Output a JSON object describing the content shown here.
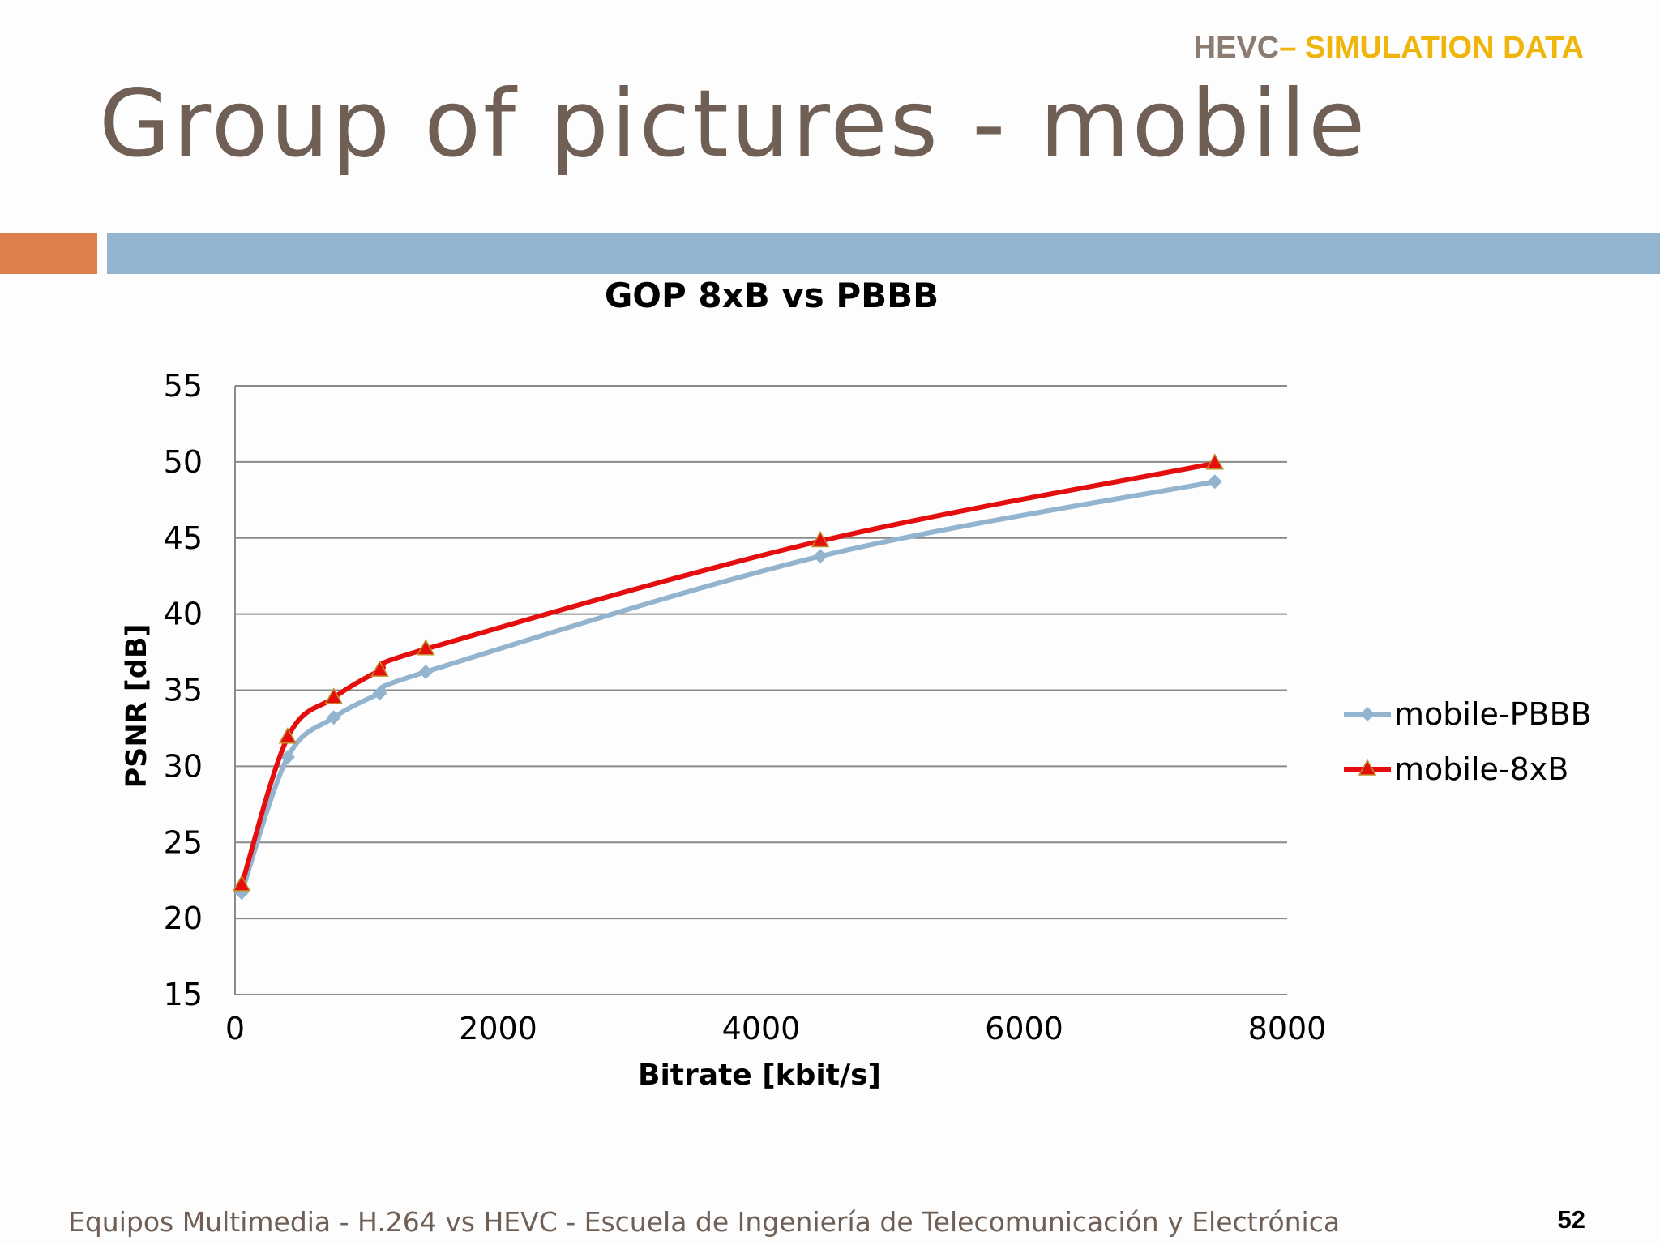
{
  "header": {
    "tag_part1": "HEVC",
    "tag_part2": "– SIMULATION DATA",
    "title": "Group of pictures - mobile"
  },
  "footer": {
    "text": "Equipos Multimedia - H.264 vs HEVC - Escuela de Ingeniería de Telecomunicación y Electrónica",
    "page_number": "52"
  },
  "colors": {
    "accent_orange": "#dc814b",
    "accent_blue": "#93b4cf",
    "title_brown": "#6f5f55",
    "tag_yellow": "#efb50b"
  },
  "chart_data": {
    "type": "line",
    "title": "GOP 8xB vs PBBB",
    "xlabel": "Bitrate [kbit/s]",
    "ylabel": "PSNR [dB]",
    "xlim": [
      0,
      8000
    ],
    "ylim": [
      15,
      55
    ],
    "xticks": [
      0,
      2000,
      4000,
      6000,
      8000
    ],
    "yticks": [
      15,
      20,
      25,
      30,
      35,
      40,
      45,
      50,
      55
    ],
    "grid": "horizontal",
    "legend_position": "right",
    "series": [
      {
        "name": "mobile-PBBB",
        "color": "#93b4cf",
        "marker": "diamond",
        "points": [
          [
            50,
            21.7
          ],
          [
            400,
            30.6
          ],
          [
            750,
            33.2
          ],
          [
            1100,
            34.8
          ],
          [
            1450,
            36.2
          ],
          [
            4450,
            43.8
          ],
          [
            7450,
            48.7
          ]
        ]
      },
      {
        "name": "mobile-8xB",
        "color": "#e40e0e",
        "marker": "triangle",
        "points": [
          [
            50,
            22.2
          ],
          [
            400,
            31.9
          ],
          [
            750,
            34.5
          ],
          [
            1100,
            36.3
          ],
          [
            1450,
            37.7
          ],
          [
            4450,
            44.8
          ],
          [
            7450,
            49.9
          ]
        ]
      }
    ]
  }
}
